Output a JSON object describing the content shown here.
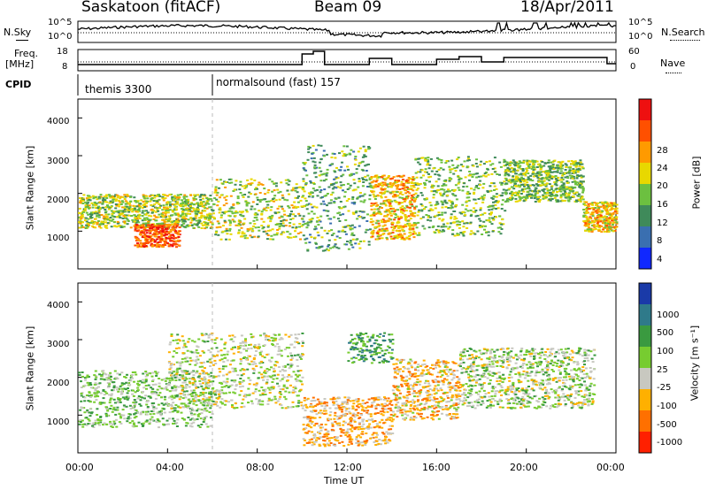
{
  "header": {
    "station": "Saskatoon (fitACF)",
    "beam": "Beam 09",
    "date": "18/Apr/2011"
  },
  "left_labels": {
    "nsky": "N.Sky",
    "freq": "Freq.",
    "freq_unit": "[MHz]",
    "cpid": "CPID"
  },
  "right_labels": {
    "nsearch": "N.Search",
    "nave": "Nave"
  },
  "cpid_segments": [
    {
      "label": "themis 3300",
      "start_hour": 0
    },
    {
      "label": "normalsound (fast) 157",
      "start_hour": 6
    }
  ],
  "chart_data": [
    {
      "type": "line",
      "name": "noise-panel",
      "ylabel_left": "N.Sky",
      "ylabel_right": "N.Search",
      "left_ticks": [
        "10^5",
        "10^0"
      ],
      "right_ticks": [
        "10^5",
        "10^0"
      ]
    },
    {
      "type": "line",
      "name": "freq-panel",
      "left_ticks": [
        "18",
        "8"
      ],
      "right_ticks": [
        "60",
        "0"
      ]
    },
    {
      "type": "heatmap",
      "name": "power-panel",
      "ylabel": "Slant Range [km]",
      "yticks": [
        "1000",
        "2000",
        "3000",
        "4000"
      ],
      "ylim": [
        0,
        4500
      ],
      "colorbar_label": "Power [dB]",
      "colorbar_ticks": [
        "4",
        "8",
        "12",
        "16",
        "20",
        "24",
        "28"
      ],
      "colorbar_colors": [
        "#1028ff",
        "#3a6fb0",
        "#3f8a5a",
        "#6cc040",
        "#e8d800",
        "#ff9a00",
        "#ff5000",
        "#ee1010"
      ]
    },
    {
      "type": "heatmap",
      "name": "velocity-panel",
      "ylabel": "Slant Range [km]",
      "yticks": [
        "1000",
        "2000",
        "3000",
        "4000"
      ],
      "ylim": [
        0,
        4500
      ],
      "colorbar_label": "Velocity [m s⁻¹]",
      "colorbar_ticks": [
        "1000",
        "500",
        "100",
        "25",
        "-25",
        "-100",
        "-500",
        "-1000"
      ],
      "colorbar_colors": [
        "#1a3aa8",
        "#2f7a8a",
        "#3a9a40",
        "#77cc30",
        "#c8c8c0",
        "#ffb000",
        "#ff7000",
        "#ff2000"
      ]
    }
  ],
  "xaxis": {
    "label": "Time UT",
    "ticks": [
      "00:00",
      "04:00",
      "08:00",
      "12:00",
      "16:00",
      "20:00",
      "00:00"
    ]
  }
}
